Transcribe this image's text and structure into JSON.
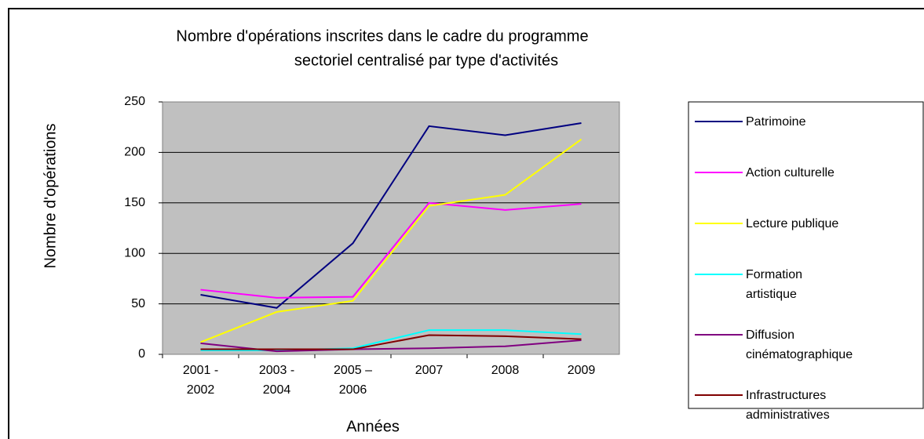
{
  "chart_data": {
    "type": "line",
    "title": [
      "Nombre d'opérations inscrites dans le cadre du programme",
      "sectoriel centralisé par type d'activités"
    ],
    "x_label": "Années",
    "y_label": "Nombre d'opérations",
    "categories": [
      "2001 - 2002",
      "2003 - 2004",
      "2005 – 2006",
      "2007",
      "2008",
      "2009"
    ],
    "series": [
      {
        "name": "Patrimoine",
        "color": "#000080",
        "values": [
          59,
          46,
          110,
          226,
          217,
          229
        ]
      },
      {
        "name": "Action culturelle",
        "color": "#ff00ff",
        "values": [
          64,
          56,
          57,
          150,
          143,
          149
        ]
      },
      {
        "name": "Lecture publique",
        "color": "#ffff00",
        "values": [
          12,
          42,
          53,
          147,
          158,
          213
        ]
      },
      {
        "name": "Formation artistique",
        "color": "#00ffff",
        "values": [
          4,
          4,
          6,
          24,
          24,
          20
        ]
      },
      {
        "name": "Diffusion cinématographique",
        "color": "#800080",
        "values": [
          11,
          3,
          5,
          6,
          8,
          14
        ]
      },
      {
        "name": "Infrastructures administratives",
        "color": "#800000",
        "values": [
          5,
          5,
          5,
          19,
          18,
          15
        ]
      }
    ],
    "ylim": [
      0,
      250
    ],
    "yticks": [
      0,
      50,
      100,
      150,
      200,
      250
    ],
    "grid": true,
    "legend": "right"
  }
}
